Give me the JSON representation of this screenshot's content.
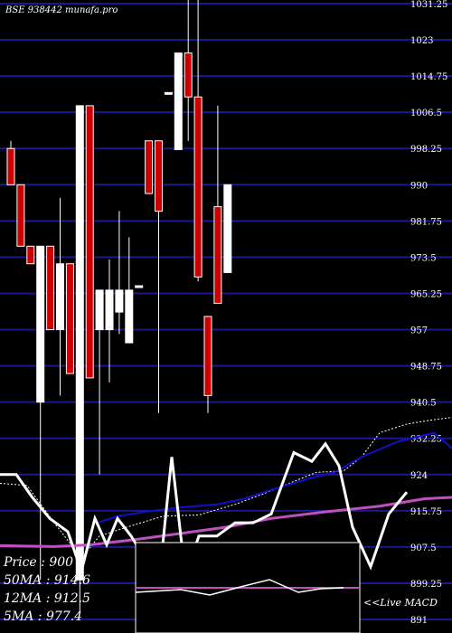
{
  "chart_data": {
    "type": "candlestick",
    "title": "BSE 938442 munafa.pro",
    "y_ticks": [
      "1031.25",
      "1023",
      "1014.75",
      "1006.5",
      "998.25",
      "990",
      "981.75",
      "973.5",
      "965.25",
      "957",
      "948.75",
      "940.5",
      "932.25",
      "924",
      "915.75",
      "907.5",
      "899.25",
      "891"
    ],
    "ylim": [
      891,
      1031.25
    ],
    "grid": true,
    "candles": [
      {
        "o": 998.25,
        "h": 1000,
        "l": 990,
        "c": 990,
        "color": "red"
      },
      {
        "o": 990,
        "h": 990,
        "l": 976,
        "c": 976,
        "color": "red"
      },
      {
        "o": 976,
        "h": 976,
        "l": 972,
        "c": 972,
        "color": "red"
      },
      {
        "o": 940.5,
        "h": 976,
        "l": 900,
        "c": 976,
        "color": "white"
      },
      {
        "o": 976,
        "h": 976,
        "l": 957,
        "c": 957,
        "color": "red"
      },
      {
        "o": 957,
        "h": 987,
        "l": 942,
        "c": 972,
        "color": "white"
      },
      {
        "o": 972,
        "h": 972,
        "l": 947,
        "c": 947,
        "color": "red"
      },
      {
        "o": 900,
        "h": 1008,
        "l": 893,
        "c": 1008,
        "color": "white"
      },
      {
        "o": 1008,
        "h": 1008,
        "l": 946,
        "c": 946,
        "color": "red"
      },
      {
        "o": 966,
        "h": 966,
        "l": 924,
        "c": 957,
        "color": "white"
      },
      {
        "o": 957,
        "h": 973,
        "l": 945,
        "c": 966,
        "color": "white"
      },
      {
        "o": 961,
        "h": 984,
        "l": 956,
        "c": 966,
        "color": "white"
      },
      {
        "o": 954,
        "h": 978,
        "l": 954,
        "c": 966,
        "color": "white"
      },
      {
        "o": 967,
        "h": 967,
        "l": 967,
        "c": 967,
        "color": "white"
      },
      {
        "o": 1000,
        "h": 1000,
        "l": 988,
        "c": 988,
        "color": "red"
      },
      {
        "o": 1000,
        "h": 1000,
        "l": 938,
        "c": 984,
        "color": "red"
      },
      {
        "o": 1011,
        "h": 1011,
        "l": 1011,
        "c": 1011,
        "color": "white"
      },
      {
        "o": 998,
        "h": 1020,
        "l": 998,
        "c": 1020,
        "color": "white"
      },
      {
        "o": 1020,
        "h": 1038,
        "l": 1000,
        "c": 1010,
        "color": "red"
      },
      {
        "o": 1010,
        "h": 1038,
        "l": 968,
        "c": 969,
        "color": "red"
      },
      {
        "o": 960,
        "h": 960,
        "l": 938,
        "c": 942,
        "color": "red"
      },
      {
        "o": 985,
        "h": 1008,
        "l": 963,
        "c": 963,
        "color": "red"
      },
      {
        "o": 970,
        "h": 990,
        "l": 970,
        "c": 990,
        "color": "white"
      }
    ],
    "series": [
      {
        "name": "50MA",
        "color": "#1010cc",
        "values": [
          null,
          null,
          null,
          null,
          null,
          null,
          null,
          null,
          null,
          null,
          null,
          null,
          null,
          null,
          null,
          null,
          null,
          null,
          null,
          null,
          null,
          null,
          null,
          null,
          null,
          null,
          null,
          null,
          null,
          null,
          null,
          null,
          null,
          null,
          null,
          null,
          null,
          null,
          null,
          null,
          null,
          null,
          null,
          null,
          null,
          null,
          null,
          null,
          null,
          null,
          null,
          null,
          null,
          null,
          null,
          null,
          null,
          null,
          null,
          null,
          null,
          null,
          null,
          null,
          null,
          null,
          null,
          null,
          null,
          null,
          null,
          null,
          null,
          null,
          null,
          null,
          null,
          null,
          null,
          null,
          null,
          null,
          null,
          null,
          null,
          null,
          null,
          null,
          null,
          null,
          null,
          null,
          null,
          null,
          null,
          null,
          null,
          null,
          null,
          null,
          null,
          null,
          null,
          null,
          null,
          null,
          null,
          null,
          null,
          null
        ]
      },
      {
        "name": "12MA",
        "color": "#c050c0",
        "values": []
      },
      {
        "name": "5MA",
        "color": "#ffffff",
        "values": []
      }
    ],
    "line_50ma": [
      [
        110,
        913.2
      ],
      [
        130,
        914.5
      ],
      [
        160,
        915.5
      ],
      [
        200,
        916.5
      ],
      [
        240,
        917.2
      ],
      [
        270,
        918.5
      ],
      [
        300,
        920.5
      ],
      [
        340,
        923
      ],
      [
        370,
        924.5
      ],
      [
        400,
        928
      ],
      [
        440,
        931.5
      ],
      [
        480,
        933.5
      ],
      [
        500,
        930
      ]
    ],
    "line_12ma": [
      [
        0,
        907.8
      ],
      [
        60,
        907.6
      ],
      [
        100,
        908
      ],
      [
        150,
        909.2
      ],
      [
        200,
        910.6
      ],
      [
        250,
        912
      ],
      [
        300,
        914
      ],
      [
        360,
        915.5
      ],
      [
        420,
        916.8
      ],
      [
        470,
        918.5
      ],
      [
        500,
        918.8
      ]
    ],
    "line_5ma": [
      [
        0,
        922
      ],
      [
        30,
        921.5
      ],
      [
        60,
        913
      ],
      [
        90,
        905
      ],
      [
        110,
        910
      ],
      [
        140,
        912
      ],
      [
        180,
        914.5
      ],
      [
        220,
        914.8
      ],
      [
        260,
        917.2
      ],
      [
        290,
        919.5
      ],
      [
        320,
        922
      ],
      [
        350,
        924.5
      ],
      [
        380,
        924.8
      ],
      [
        400,
        928
      ],
      [
        420,
        933.5
      ],
      [
        450,
        935.5
      ],
      [
        480,
        936.5
      ],
      [
        500,
        937
      ]
    ],
    "line_price": [
      [
        0,
        924
      ],
      [
        18,
        924
      ],
      [
        35,
        919
      ],
      [
        55,
        914
      ],
      [
        75,
        911
      ],
      [
        90,
        902
      ],
      [
        105,
        914
      ],
      [
        118,
        908
      ],
      [
        130,
        914
      ],
      [
        145,
        910
      ],
      [
        160,
        905
      ],
      [
        175,
        898
      ],
      [
        190,
        928
      ],
      [
        205,
        901
      ],
      [
        220,
        910
      ],
      [
        240,
        910
      ],
      [
        260,
        913
      ],
      [
        280,
        913
      ],
      [
        300,
        915
      ],
      [
        325,
        929
      ],
      [
        345,
        927
      ],
      [
        360,
        931
      ],
      [
        375,
        926
      ],
      [
        390,
        912
      ],
      [
        410,
        903
      ],
      [
        430,
        915
      ],
      [
        450,
        920
      ]
    ],
    "macd_line": [
      [
        150,
        655
      ],
      [
        200,
        652
      ],
      [
        232,
        658
      ],
      [
        270,
        648
      ],
      [
        298,
        641
      ],
      [
        330,
        655
      ],
      [
        355,
        651
      ],
      [
        380,
        650
      ]
    ]
  },
  "info": {
    "price": "Price   : 900",
    "ma50": "50MA : 914.6",
    "ma12": "12MA : 912.5",
    "ma5": "5MA : 977.4"
  },
  "macd_label": "<<Live MACD"
}
